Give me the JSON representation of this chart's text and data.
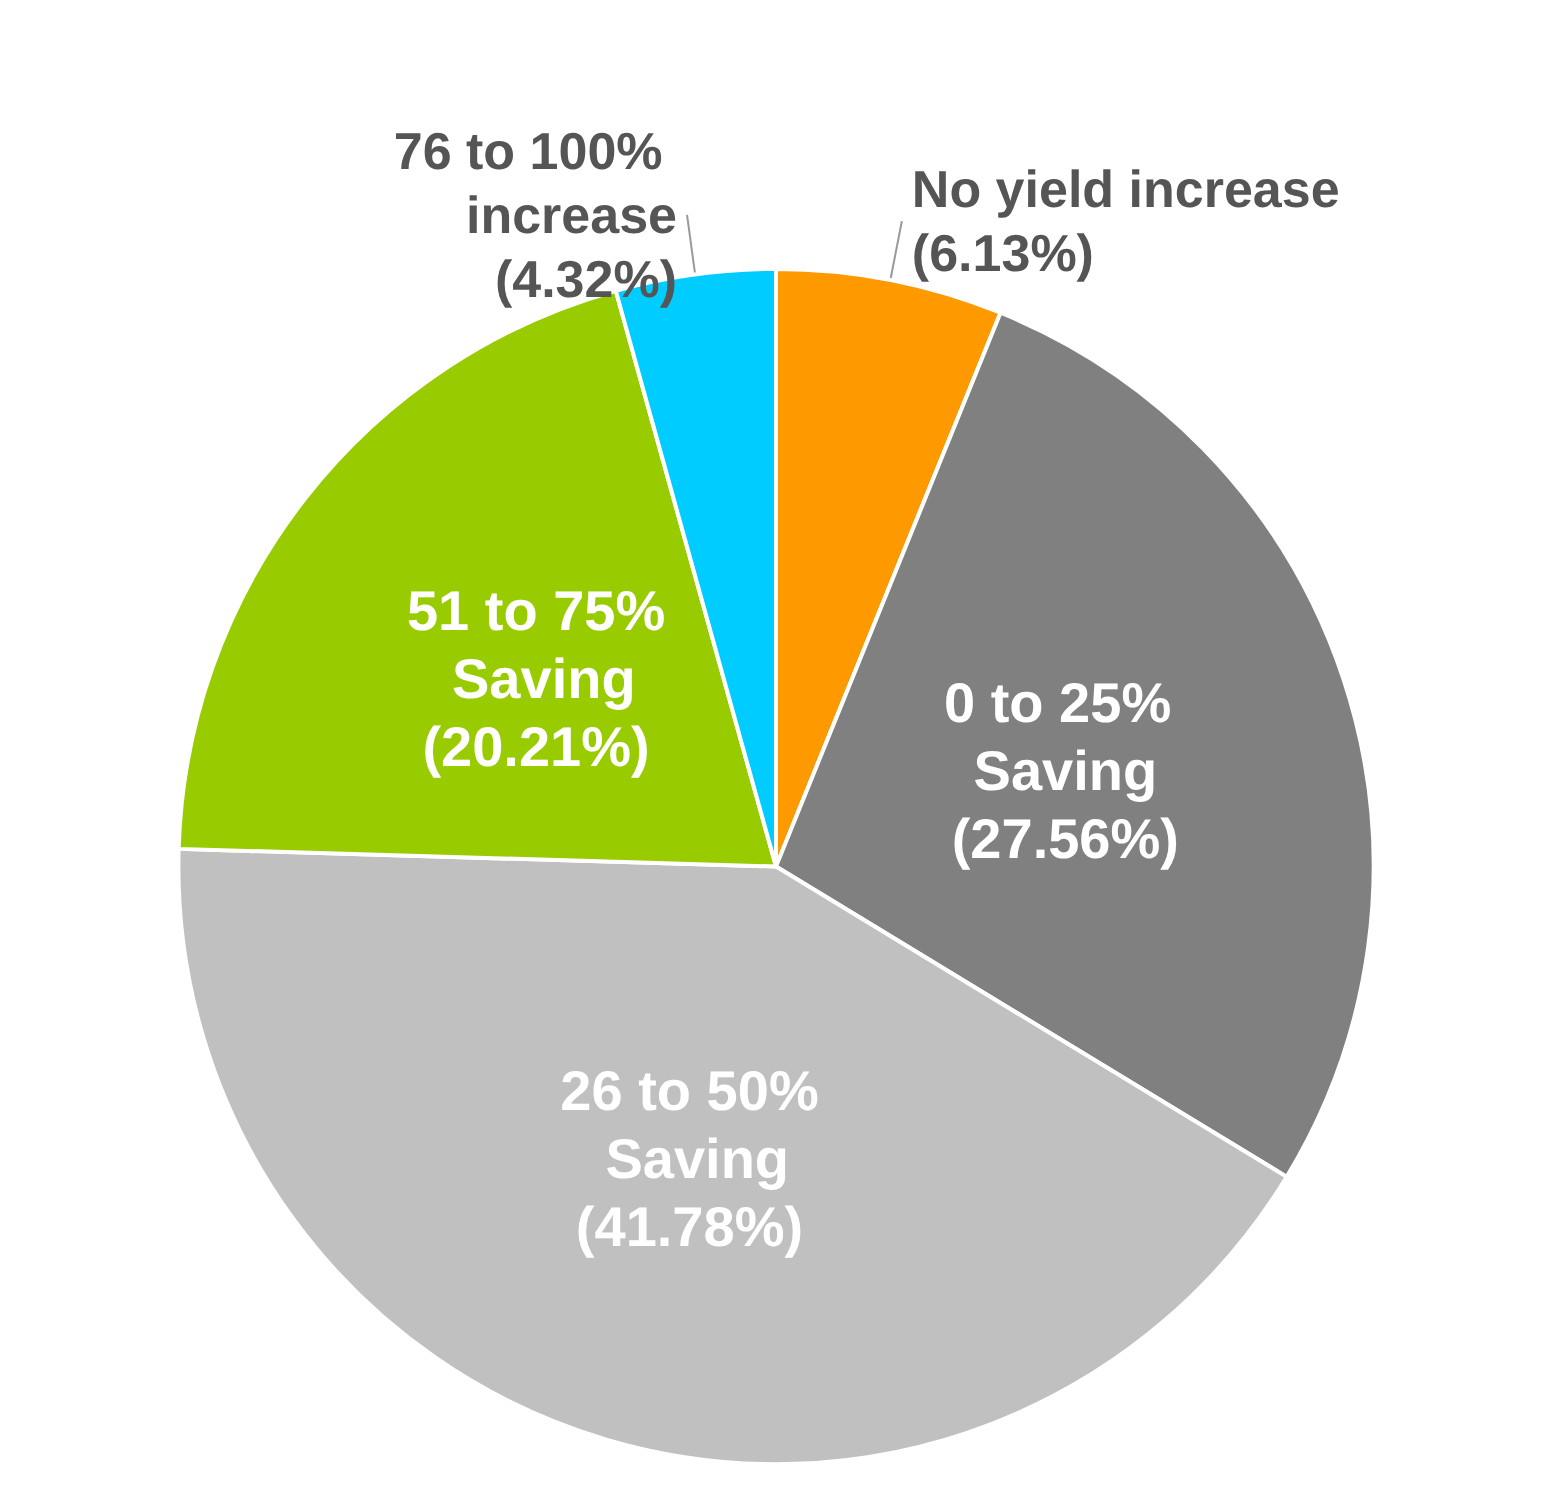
{
  "chart_data": {
    "type": "pie",
    "categories": [
      "No yield increase",
      "0 to 25% Saving",
      "26 to 50% Saving",
      "51 to 75% Saving",
      "76 to 100% increase"
    ],
    "values": [
      6.13,
      27.56,
      41.78,
      20.21,
      4.32
    ],
    "colors": [
      "#ff9900",
      "#808080",
      "#c0c0c0",
      "#99cc00",
      "#00ccff"
    ],
    "value_labels": [
      "(6.13%)",
      "(27.56%)",
      "(41.78%)",
      "(20.21%)",
      "(4.32%)"
    ],
    "legend": false
  }
}
